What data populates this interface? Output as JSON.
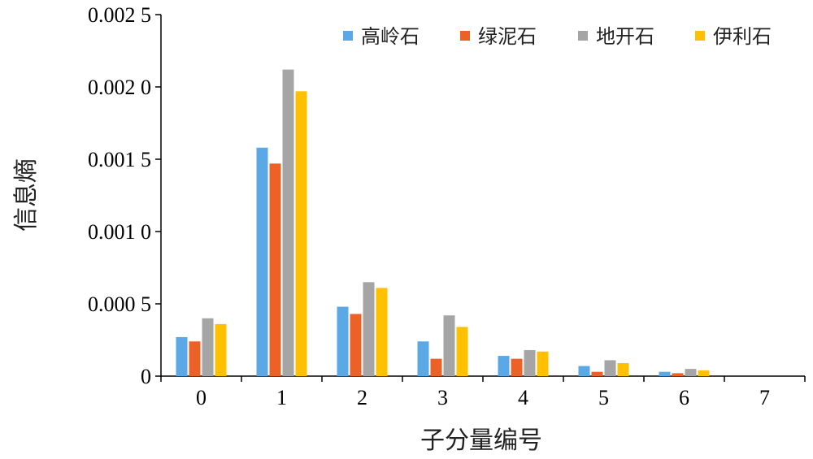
{
  "chart_data": {
    "type": "bar",
    "title": "",
    "xlabel": "子分量编号",
    "ylabel": "信息熵",
    "categories": [
      "0",
      "1",
      "2",
      "3",
      "4",
      "5",
      "6",
      "7"
    ],
    "ylim": [
      0,
      0.0025
    ],
    "yticks": [
      0,
      0.0005,
      0.001,
      0.0015,
      0.002,
      0.0025
    ],
    "ytick_labels": [
      "0",
      "0.000 5",
      "0.001 0",
      "0.001 5",
      "0.002 0",
      "0.002 5"
    ],
    "legend_position": "top-right",
    "grid": false,
    "series": [
      {
        "name": "高岭石",
        "color": "#5aa9e6",
        "values": [
          0.00027,
          0.00158,
          0.00048,
          0.00024,
          0.00014,
          7e-05,
          3e-05,
          0
        ]
      },
      {
        "name": "绿泥石",
        "color": "#ec6125",
        "values": [
          0.00024,
          0.00147,
          0.00043,
          0.00012,
          0.00012,
          3e-05,
          2e-05,
          0
        ]
      },
      {
        "name": "地开石",
        "color": "#a5a5a5",
        "values": [
          0.0004,
          0.00212,
          0.00065,
          0.00042,
          0.00018,
          0.00011,
          5e-05,
          0
        ]
      },
      {
        "name": "伊利石",
        "color": "#ffc000",
        "values": [
          0.00036,
          0.00197,
          0.00061,
          0.00034,
          0.00017,
          9e-05,
          4e-05,
          0
        ]
      }
    ]
  }
}
